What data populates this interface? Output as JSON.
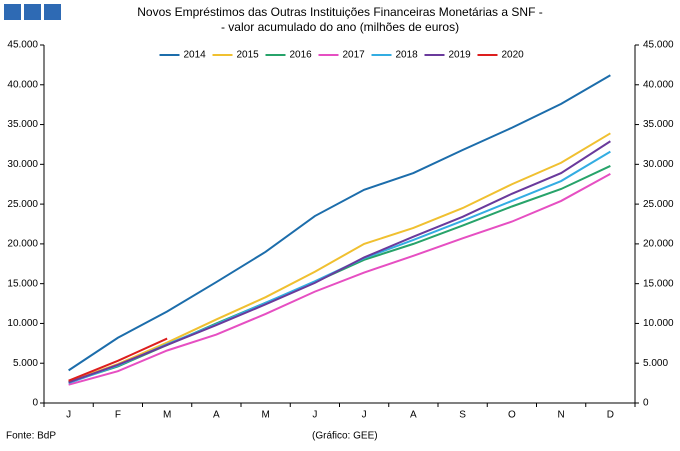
{
  "chart_data": {
    "type": "line",
    "title": [
      "Novos Empréstimos das Outras Instituições Financeiras Monetárias a SNF -",
      "- valor acumulado do ano (milhões de euros)"
    ],
    "categories": [
      "J",
      "F",
      "M",
      "A",
      "M",
      "J",
      "J",
      "A",
      "S",
      "O",
      "N",
      "D"
    ],
    "series": [
      {
        "name": "2014",
        "color": "#1c6dab",
        "values": [
          4100,
          8200,
          11500,
          15200,
          19000,
          23500,
          26800,
          28900,
          31800,
          34600,
          37600,
          41200
        ]
      },
      {
        "name": "2015",
        "color": "#f0c030",
        "values": [
          2700,
          4900,
          7600,
          10500,
          13300,
          16500,
          20000,
          22000,
          24500,
          27500,
          30200,
          33900
        ]
      },
      {
        "name": "2016",
        "color": "#27a36a",
        "values": [
          2600,
          4600,
          7300,
          10000,
          12600,
          15200,
          18000,
          20000,
          22300,
          24700,
          26900,
          29800
        ]
      },
      {
        "name": "2017",
        "color": "#e64fc2",
        "values": [
          2300,
          4000,
          6600,
          8600,
          11200,
          14000,
          16400,
          18500,
          20700,
          22800,
          25400,
          28800
        ]
      },
      {
        "name": "2018",
        "color": "#33ade2",
        "values": [
          2500,
          4700,
          7400,
          9900,
          12600,
          15300,
          18200,
          20500,
          22900,
          25400,
          27900,
          31600
        ]
      },
      {
        "name": "2019",
        "color": "#6a3a9c",
        "values": [
          2600,
          4800,
          7300,
          9800,
          12400,
          15100,
          18300,
          20900,
          23400,
          26300,
          28900,
          32900
        ]
      },
      {
        "name": "2020",
        "color": "#dd1e1e",
        "values": [
          2800,
          5300,
          8100,
          null,
          null,
          null,
          null,
          null,
          null,
          null,
          null,
          null
        ]
      }
    ],
    "ylim": [
      0,
      45000
    ],
    "yticks": [
      0,
      {
        "value": 5000,
        "label": "5.000"
      },
      {
        "value": 10000,
        "label": "10.000"
      },
      {
        "value": 15000,
        "label": "15.000"
      },
      {
        "value": 20000,
        "label": "20.000"
      },
      {
        "value": 25000,
        "label": "25.000"
      },
      {
        "value": 30000,
        "label": "30.000"
      },
      {
        "value": 35000,
        "label": "35.000"
      },
      {
        "value": 40000,
        "label": "40.000"
      },
      {
        "value": 45000,
        "label": "45.000"
      }
    ],
    "legend": "top",
    "source": "Fonte: BdP",
    "credit": "(Gráfico: GEE)"
  }
}
